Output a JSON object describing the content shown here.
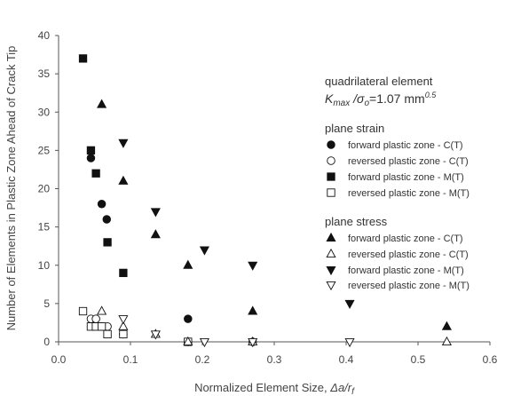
{
  "chart_data": {
    "type": "scatter",
    "xlabel_text": "Normalized Element Size, ",
    "xlabel_italic": "Δa/r",
    "xlabel_sub": "f",
    "ylabel": "Number of Elements in Plastic Zone Ahead of Crack Tip",
    "xlim": [
      0,
      0.6
    ],
    "ylim": [
      0,
      40
    ],
    "xticks": [
      "0.0",
      "0.1",
      "0.2",
      "0.3",
      "0.4",
      "0.5",
      "0.6"
    ],
    "xtick_values": [
      0,
      0.1,
      0.2,
      0.3,
      0.4,
      0.5,
      0.6
    ],
    "yticks": [
      "0",
      "5",
      "10",
      "15",
      "20",
      "25",
      "30",
      "35",
      "40"
    ],
    "ytick_values": [
      0,
      5,
      10,
      15,
      20,
      25,
      30,
      35,
      40
    ],
    "grid": false,
    "annotation": {
      "line1": "quadrilateral element",
      "k_text": "K",
      "k_sub": "max",
      "k_mid": " /σ",
      "k_sub2": "o",
      "k_val": "=1.07 mm",
      "k_sup": "0.5"
    },
    "legend_position": "right",
    "groups": [
      {
        "heading": "plane strain",
        "series": [
          {
            "name": "forward plastic zone - C(T)",
            "marker": "circle-filled",
            "x": [
              0.045,
              0.06,
              0.067,
              0.18
            ],
            "y": [
              24,
              18,
              16,
              3
            ]
          },
          {
            "name": "reversed plastic zone - C(T)",
            "marker": "circle-open",
            "x": [
              0.045,
              0.052,
              0.06,
              0.068,
              0.09,
              0.18,
              0.27
            ],
            "y": [
              3,
              3,
              2,
              2,
              1,
              0,
              0
            ]
          },
          {
            "name": "forward plastic zone - M(T)",
            "marker": "square-filled",
            "x": [
              0.034,
              0.045,
              0.052,
              0.068,
              0.09
            ],
            "y": [
              37,
              25,
              22,
              13,
              9
            ]
          },
          {
            "name": "reversed plastic zone - M(T)",
            "marker": "square-open",
            "x": [
              0.034,
              0.045,
              0.052,
              0.06,
              0.068,
              0.09,
              0.18
            ],
            "y": [
              4,
              2,
              2,
              2,
              1,
              1,
              0
            ]
          }
        ]
      },
      {
        "heading": "plane stress",
        "series": [
          {
            "name": "forward plastic zone - C(T)",
            "marker": "triangle-up-filled",
            "x": [
              0.06,
              0.09,
              0.135,
              0.18,
              0.27,
              0.54
            ],
            "y": [
              31,
              21,
              14,
              10,
              4,
              2
            ]
          },
          {
            "name": "reversed plastic zone - C(T)",
            "marker": "triangle-up-open",
            "x": [
              0.06,
              0.09,
              0.135,
              0.18,
              0.27,
              0.54
            ],
            "y": [
              4,
              2,
              1,
              0,
              0,
              0
            ]
          },
          {
            "name": "forward plastic zone - M(T)",
            "marker": "triangle-down-filled",
            "x": [
              0.09,
              0.135,
              0.203,
              0.27,
              0.405
            ],
            "y": [
              26,
              17,
              12,
              10,
              5
            ]
          },
          {
            "name": "reversed plastic zone - M(T)",
            "marker": "triangle-down-open",
            "x": [
              0.09,
              0.135,
              0.203,
              0.27,
              0.405
            ],
            "y": [
              3,
              1,
              0,
              0,
              0
            ]
          }
        ]
      }
    ]
  }
}
